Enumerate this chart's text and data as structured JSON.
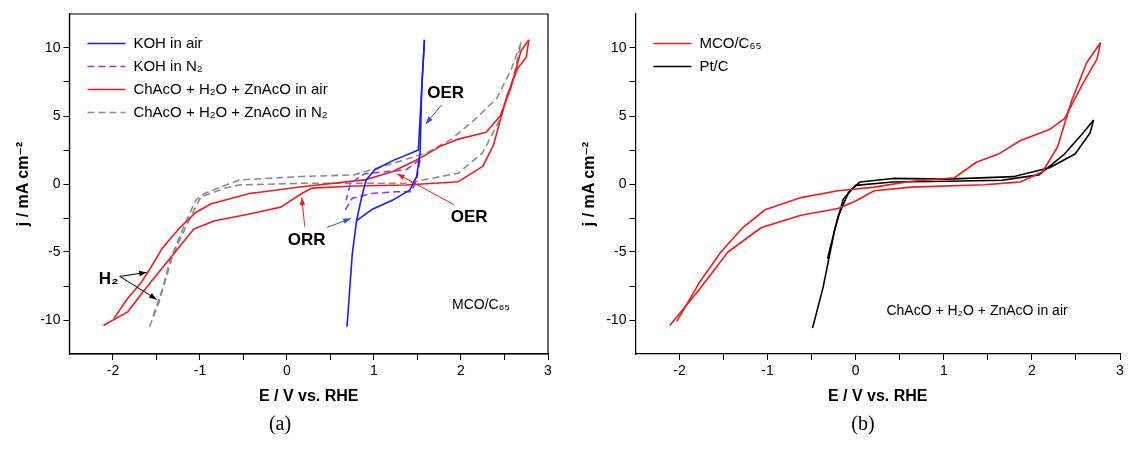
{
  "chart_data": [
    {
      "type": "line",
      "xlabel": "E / V vs. RHE",
      "ylabel": "j / mA cm⁻²",
      "xlim": [
        -2.5,
        3
      ],
      "ylim": [
        -12.5,
        12.5
      ],
      "xticks": [
        -2,
        {
          "value": -1.5,
          "label": null
        },
        -1,
        {
          "value": -0.5,
          "label": null
        },
        0,
        {
          "value": 0.5,
          "label": null
        },
        1,
        {
          "value": 1.5,
          "label": null
        },
        2,
        {
          "value": 2.5,
          "label": null
        },
        3
      ],
      "yticks": [
        -10,
        {
          "value": -7.5,
          "label": null
        },
        -5,
        {
          "value": -2.5,
          "label": null
        },
        0,
        {
          "value": 2.5,
          "label": null
        },
        5,
        {
          "value": 7.5,
          "label": null
        },
        10
      ],
      "grid": false,
      "legend": "top left",
      "series": [
        {
          "name": "KOH in air",
          "color": "#1c1cf0",
          "line_style": "solid",
          "x": [
            0.69,
            0.75,
            0.8,
            0.97,
            1.21,
            1.41,
            1.49,
            1.53,
            1.55,
            1.58
          ],
          "values": [
            -10.5,
            -5.2,
            -2.7,
            -1.9,
            -1.2,
            -0.45,
            0.55,
            2.3,
            7.3,
            10.6
          ]
        },
        {
          "color": "#1c1cf0",
          "line_style": "solid",
          "x": [
            1.58,
            1.51,
            1.21,
            1.01,
            0.91,
            0.85,
            0.8
          ],
          "values": [
            10.6,
            2.5,
            1.7,
            1.05,
            0.3,
            -1.2,
            -2.7
          ]
        },
        {
          "name": "KOH in N₂",
          "color": "#9b30f0",
          "line_style": "dashed",
          "x": [
            0.67,
            0.75,
            0.97,
            1.25,
            1.43,
            1.49,
            1.53
          ],
          "values": [
            -1.9,
            -1.05,
            -0.7,
            -0.57,
            -0.57,
            0.3,
            1.8
          ]
        },
        {
          "color": "#9b30f0",
          "line_style": "dashed",
          "x": [
            1.53,
            1.37,
            1.13,
            0.89,
            0.73,
            0.68
          ],
          "values": [
            1.8,
            1.05,
            0.9,
            0.75,
            0.05,
            -1.2
          ]
        },
        {
          "name": "ChAcO + H₂O + ZnAcO in air",
          "color": "#f01c1c",
          "line_style": "solid",
          "x": [
            -2.11,
            -1.83,
            -1.59,
            -1.31,
            -1.07,
            -0.83,
            -0.43,
            -0.07,
            0.17,
            0.29,
            0.77,
            1.37,
            1.97,
            2.25,
            2.37,
            2.53,
            2.65,
            2.75,
            2.78
          ],
          "values": [
            -10.4,
            -9.4,
            -7.4,
            -5.2,
            -3.3,
            -2.7,
            -2.2,
            -1.7,
            -0.7,
            -0.3,
            -0.15,
            -0.07,
            0.17,
            1.3,
            2.8,
            6.5,
            8.5,
            9.3,
            10.6
          ]
        },
        {
          "color": "#f01c1c",
          "line_style": "solid",
          "x": [
            2.78,
            2.69,
            2.57,
            2.45,
            2.29,
            1.97,
            1.77,
            1.53,
            1.21,
            0.89,
            0.17,
            -0.43,
            -0.87,
            -1.05,
            -1.23,
            -1.43,
            -1.59,
            -1.67,
            -1.83,
            -1.99
          ],
          "values": [
            10.6,
            9.8,
            7.0,
            5.0,
            3.8,
            3.3,
            2.8,
            1.9,
            0.9,
            0.3,
            -0.2,
            -0.7,
            -1.45,
            -2.1,
            -3.2,
            -4.7,
            -6.4,
            -7.2,
            -8.4,
            -9.9
          ]
        },
        {
          "name": "ChAcO + H₂O + ZnAcO in N₂",
          "color": "#8c8c8c",
          "line_style": "dashed",
          "x": [
            -1.58,
            -1.47,
            -1.31,
            -1.11,
            -0.99,
            -0.71,
            -0.55,
            0.17,
            1.37,
            1.97,
            2.25,
            2.45,
            2.61,
            2.69
          ],
          "values": [
            -10.5,
            -8.7,
            -5.2,
            -2.45,
            -0.95,
            -0.3,
            -0.07,
            0.05,
            0.05,
            0.8,
            2.3,
            4.8,
            8.0,
            10.4
          ]
        },
        {
          "color": "#8c8c8c",
          "line_style": "dashed",
          "x": [
            2.69,
            2.57,
            2.41,
            2.17,
            1.89,
            1.61,
            1.21,
            0.77,
            0.17,
            -0.55,
            -0.95,
            -1.05,
            -1.19,
            -1.35,
            -1.43,
            -1.55
          ],
          "values": [
            10.4,
            8.3,
            6.3,
            4.8,
            3.3,
            2.3,
            1.5,
            0.67,
            0.55,
            0.3,
            -0.7,
            -1.2,
            -3.2,
            -5.7,
            -7.7,
            -9.9
          ]
        }
      ],
      "annotations": [
        {
          "text": "OER",
          "x": 1.56,
          "y": 4.2
        },
        {
          "text": "OER",
          "x": 1.22,
          "y": 0.9
        },
        {
          "text": "ORR",
          "x": 0.17,
          "y": -0.7
        },
        {
          "text": "H₂",
          "x": -1.6,
          "y": -6.5
        },
        "MCO/C₆₅",
        "(a)"
      ]
    },
    {
      "type": "line",
      "xlabel": "E / V vs. RHE",
      "ylabel": "j / mA cm⁻²",
      "xlim": [
        -2.5,
        3
      ],
      "ylim": [
        -12.5,
        12.5
      ],
      "xticks": [
        -2,
        {
          "value": -1.5,
          "label": null
        },
        -1,
        {
          "value": -0.5,
          "label": null
        },
        0,
        {
          "value": 0.5,
          "label": null
        },
        1,
        {
          "value": 1.5,
          "label": null
        },
        2,
        {
          "value": 2.5,
          "label": null
        },
        3
      ],
      "yticks": [
        -10,
        {
          "value": -7.5,
          "label": null
        },
        -5,
        {
          "value": -2.5,
          "label": null
        },
        0,
        {
          "value": 2.5,
          "label": null
        },
        5,
        {
          "value": 7.5,
          "label": null
        },
        10
      ],
      "grid": false,
      "legend": "top left",
      "series": [
        {
          "name": "MCO/C₆₅",
          "color": "#f01c1c",
          "line_style": "solid",
          "x": [
            -2.11,
            -1.78,
            -1.45,
            -1.07,
            -0.62,
            -0.2,
            0.0,
            0.21,
            0.63,
            1.46,
            1.87,
            2.12,
            2.29,
            2.45,
            2.62,
            2.78
          ],
          "values": [
            -10.4,
            -7.8,
            -5.0,
            -3.2,
            -2.3,
            -1.8,
            -1.25,
            -0.5,
            -0.23,
            -0.05,
            0.15,
            0.9,
            2.7,
            6.1,
            8.9,
            10.4
          ]
        },
        {
          "color": "#f01c1c",
          "line_style": "solid",
          "x": [
            2.78,
            2.74,
            2.58,
            2.37,
            2.2,
            1.87,
            1.62,
            1.37,
            1.12,
            0.63,
            0.21,
            -0.2,
            -0.62,
            -1.03,
            -1.28,
            -1.53,
            -1.78,
            -2.03
          ],
          "values": [
            10.4,
            9.2,
            7.4,
            4.8,
            4.0,
            3.2,
            2.2,
            1.6,
            0.46,
            0.2,
            -0.23,
            -0.5,
            -1.0,
            -1.9,
            -3.2,
            -5.0,
            -7.3,
            -10.1
          ]
        },
        {
          "name": "Pt/C",
          "color": "#000000",
          "line_style": "solid",
          "x": [
            -0.49,
            -0.37,
            -0.24,
            -0.14,
            0.0,
            0.42,
            1.04,
            1.66,
            2.08,
            2.37,
            2.58,
            2.7
          ],
          "values": [
            -10.6,
            -7.6,
            -3.4,
            -1.1,
            -0.1,
            0.15,
            0.2,
            0.28,
            0.67,
            2.2,
            3.75,
            4.7
          ]
        },
        {
          "color": "#000000",
          "line_style": "solid",
          "x": [
            2.7,
            2.66,
            2.49,
            2.2,
            1.79,
            1.04,
            0.42,
            0.05,
            -0.08,
            -0.2,
            -0.32
          ],
          "values": [
            4.7,
            3.75,
            2.2,
            1.2,
            0.54,
            0.36,
            0.41,
            0.15,
            -0.6,
            -2.4,
            -5.5
          ]
        }
      ],
      "annotations": [
        "ChAcO + H₂O + ZnAcO in air",
        "(b)"
      ]
    }
  ]
}
